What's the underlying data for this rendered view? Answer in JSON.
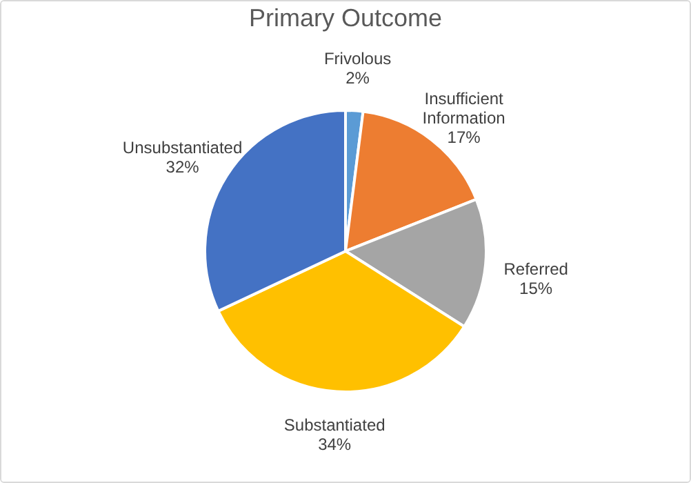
{
  "chart_data": {
    "type": "pie",
    "title": "Primary Outcome",
    "categories": [
      "Frivolous",
      "Insufficient Information",
      "Referred",
      "Substantiated",
      "Unsubstantiated"
    ],
    "values": [
      2,
      17,
      15,
      34,
      32
    ],
    "colors": [
      "#5b9bd5",
      "#ed7d31",
      "#a5a5a5",
      "#ffc000",
      "#4472c4"
    ],
    "value_labels": [
      "2%",
      "17%",
      "15%",
      "34%",
      "32%"
    ],
    "legend": false
  }
}
